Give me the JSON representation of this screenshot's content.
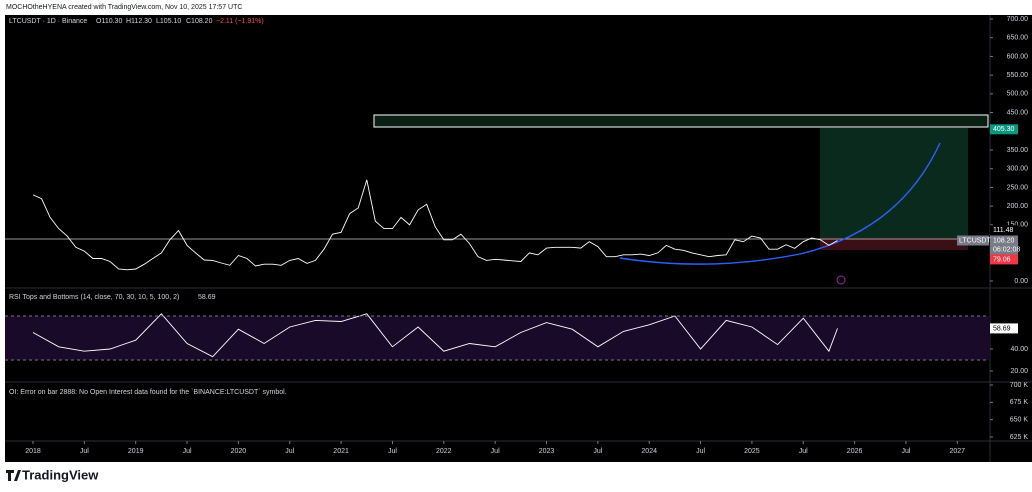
{
  "header": "MOCHOtheHYENA created with TradingView.com, Nov 10, 2025 17:57 UTC",
  "logo": "TradingView",
  "chart_data": [
    {
      "type": "line",
      "title": "LTCUSDT · 1D · Binance",
      "ohlc": [
        "O110.30",
        "H112.30",
        "L105.10",
        "C108.20",
        "−2.11 (−1.91%)"
      ],
      "x": [
        "2018-01",
        "2018-02",
        "2018-03",
        "2018-04",
        "2018-05",
        "2018-06",
        "2018-07",
        "2018-08",
        "2018-09",
        "2018-10",
        "2018-11",
        "2018-12",
        "2019-01",
        "2019-02",
        "2019-03",
        "2019-04",
        "2019-05",
        "2019-06",
        "2019-07",
        "2019-08",
        "2019-09",
        "2019-10",
        "2019-11",
        "2019-12",
        "2020-01",
        "2020-02",
        "2020-03",
        "2020-04",
        "2020-05",
        "2020-06",
        "2020-07",
        "2020-08",
        "2020-09",
        "2020-10",
        "2020-11",
        "2020-12",
        "2021-01",
        "2021-02",
        "2021-03",
        "2021-04",
        "2021-05",
        "2021-06",
        "2021-07",
        "2021-08",
        "2021-09",
        "2021-10",
        "2021-11",
        "2021-12",
        "2022-01",
        "2022-02",
        "2022-03",
        "2022-04",
        "2022-05",
        "2022-06",
        "2022-07",
        "2022-08",
        "2022-09",
        "2022-10",
        "2022-11",
        "2022-12",
        "2023-01",
        "2023-02",
        "2023-03",
        "2023-04",
        "2023-05",
        "2023-06",
        "2023-07",
        "2023-08",
        "2023-09",
        "2023-10",
        "2023-11",
        "2023-12",
        "2024-01",
        "2024-02",
        "2024-03",
        "2024-04",
        "2024-05",
        "2024-06",
        "2024-07",
        "2024-08",
        "2024-09",
        "2024-10",
        "2024-11",
        "2024-12",
        "2025-01",
        "2025-02",
        "2025-03",
        "2025-04",
        "2025-05",
        "2025-06",
        "2025-07",
        "2025-08",
        "2025-09",
        "2025-10",
        "2025-11"
      ],
      "series": [
        {
          "name": "LTCUSDT",
          "color": "#ffffff",
          "values": [
            230,
            220,
            170,
            140,
            120,
            90,
            80,
            60,
            60,
            52,
            32,
            30,
            32,
            45,
            60,
            75,
            110,
            135,
            95,
            75,
            56,
            55,
            48,
            42,
            68,
            60,
            40,
            45,
            45,
            42,
            55,
            60,
            47,
            55,
            85,
            125,
            130,
            180,
            195,
            270,
            160,
            140,
            140,
            170,
            150,
            190,
            205,
            145,
            110,
            110,
            125,
            100,
            65,
            55,
            58,
            56,
            54,
            52,
            75,
            70,
            88,
            90,
            90,
            90,
            88,
            105,
            92,
            65,
            65,
            70,
            70,
            72,
            68,
            75,
            95,
            85,
            82,
            75,
            70,
            65,
            68,
            70,
            110,
            105,
            120,
            115,
            85,
            85,
            97,
            87,
            105,
            115,
            110,
            95,
            108.2
          ]
        }
      ],
      "ylim": [
        0,
        700
      ],
      "yticks": [
        {
          "value": 700,
          "label": "700.00"
        },
        {
          "value": 650,
          "label": "650.00"
        },
        {
          "value": 600,
          "label": "600.00"
        },
        {
          "value": 550,
          "label": "550.00"
        },
        {
          "value": 500,
          "label": "500.00"
        },
        {
          "value": 450,
          "label": "450.00"
        },
        {
          "value": 350,
          "label": "350.00"
        },
        {
          "value": 300,
          "label": "300.00"
        },
        {
          "value": 250,
          "label": "250.00"
        },
        {
          "value": 200,
          "label": "200.00"
        },
        {
          "value": 150,
          "label": "150.00"
        },
        {
          "value": 0,
          "label": "0.00"
        }
      ],
      "price_labels": [
        {
          "value": 405.3,
          "label": "405.30",
          "color": "#089981"
        },
        {
          "value": 111.48,
          "label": "111.48",
          "color": "#000000"
        },
        {
          "value": 108.2,
          "label": "108.20",
          "color": "#787b86"
        },
        {
          "value": 104.62,
          "label": "104.62",
          "color": "#787b86"
        },
        {
          "value": 79.06,
          "label": "79.06",
          "color": "#f23645"
        }
      ],
      "countdown": "06:02:08",
      "xticks": [
        {
          "value": "2018-01",
          "label": "2018"
        },
        {
          "value": "2018-07",
          "label": "Jul"
        },
        {
          "value": "2019-01",
          "label": "2019"
        },
        {
          "value": "2019-07",
          "label": "Jul"
        },
        {
          "value": "2020-01",
          "label": "2020"
        },
        {
          "value": "2020-07",
          "label": "Jul"
        },
        {
          "value": "2021-01",
          "label": "2021"
        },
        {
          "value": "2021-07",
          "label": "Jul"
        },
        {
          "value": "2022-01",
          "label": "2022"
        },
        {
          "value": "2022-07",
          "label": "Jul"
        },
        {
          "value": "2023-01",
          "label": "2023"
        },
        {
          "value": "2023-07",
          "label": "Jul"
        },
        {
          "value": "2024-01",
          "label": "2024"
        },
        {
          "value": "2024-07",
          "label": "Jul"
        },
        {
          "value": "2025-01",
          "label": "2025"
        },
        {
          "value": "2025-07",
          "label": "Jul"
        },
        {
          "value": "2026-01",
          "label": "2026"
        },
        {
          "value": "2026-07",
          "label": "Jul"
        },
        {
          "value": "2027-01",
          "label": "2027"
        }
      ]
    },
    {
      "type": "line",
      "title": "RSI Tops and Bottoms (14, close, 70, 30, 10, 5, 100, 2)",
      "last_label": {
        "value": 58.69,
        "label": "58.69"
      },
      "x": [
        "2018-01",
        "2018-04",
        "2018-07",
        "2018-10",
        "2019-01",
        "2019-04",
        "2019-07",
        "2019-10",
        "2020-01",
        "2020-04",
        "2020-07",
        "2020-10",
        "2021-01",
        "2021-04",
        "2021-07",
        "2021-10",
        "2022-01",
        "2022-04",
        "2022-07",
        "2022-10",
        "2023-01",
        "2023-04",
        "2023-07",
        "2023-10",
        "2024-01",
        "2024-04",
        "2024-07",
        "2024-10",
        "2025-01",
        "2025-04",
        "2025-07",
        "2025-10",
        "2025-11"
      ],
      "series": [
        {
          "name": "RSI",
          "color": "#ffffff",
          "values": [
            55,
            42,
            38,
            40,
            48,
            72,
            45,
            33,
            58,
            45,
            60,
            66,
            65,
            72,
            42,
            60,
            38,
            45,
            42,
            55,
            64,
            58,
            42,
            56,
            62,
            70,
            40,
            66,
            60,
            44,
            68,
            38,
            58.69
          ]
        }
      ],
      "levels": [
        70,
        30
      ],
      "ylim": [
        11.8,
        93.6
      ],
      "yticks": [
        {
          "value": 40,
          "label": "40.00"
        },
        {
          "value": 20,
          "label": "20.00"
        }
      ]
    },
    {
      "type": "line",
      "title": "OI: Error on bar 2888: No Open Interest data found for the `BINANCE:LTCUSDT` symbol.",
      "ylim": [
        625000,
        700000
      ],
      "yticks": [
        {
          "value": 700000,
          "label": "700 K"
        },
        {
          "value": 675000,
          "label": "675 K"
        },
        {
          "value": 650000,
          "label": "650 K"
        },
        {
          "value": 625000,
          "label": "625 K"
        }
      ]
    }
  ]
}
